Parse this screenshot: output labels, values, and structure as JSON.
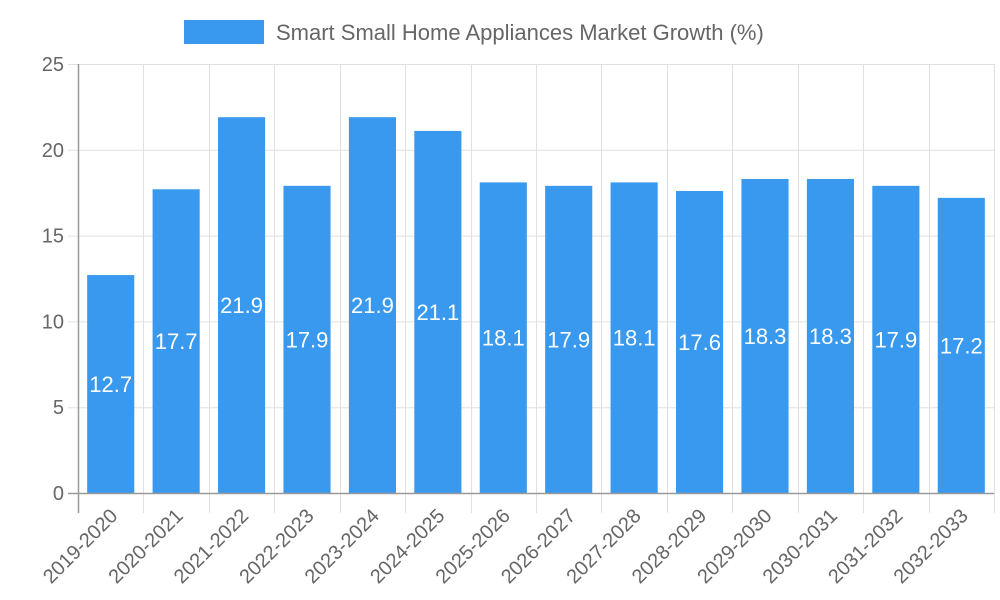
{
  "chart_data": {
    "type": "bar",
    "title": "",
    "legend": {
      "position": "top",
      "entries": [
        {
          "label": "Smart Small Home Appliances Market Growth (%)",
          "color": "#3899EE"
        }
      ]
    },
    "xlabel": "",
    "ylabel": "",
    "ylim": [
      0,
      25
    ],
    "yticks": [
      0,
      5,
      10,
      15,
      20,
      25
    ],
    "grid": true,
    "categories": [
      "2019-2020",
      "2020-2021",
      "2021-2022",
      "2022-2023",
      "2023-2024",
      "2024-2025",
      "2025-2026",
      "2026-2027",
      "2027-2028",
      "2028-2029",
      "2029-2030",
      "2030-2031",
      "2031-2032",
      "2032-2033"
    ],
    "series": [
      {
        "name": "Smart Small Home Appliances Market Growth (%)",
        "color": "#3899EE",
        "values": [
          12.7,
          17.7,
          21.9,
          17.9,
          21.9,
          21.1,
          18.1,
          17.9,
          18.1,
          17.6,
          18.3,
          18.3,
          17.9,
          17.2
        ],
        "data_labels": [
          "12.7",
          "17.7",
          "21.9",
          "17.9",
          "21.9",
          "21.1",
          "18.1",
          "17.9",
          "18.1",
          "17.6",
          "18.3",
          "18.3",
          "17.9",
          "17.2"
        ]
      }
    ],
    "x_tick_rotation_deg": -45
  },
  "colors": {
    "bar": "#3899EE",
    "gridline": "#e0e0e0",
    "axis": "#999999",
    "text": "#666666",
    "data_label": "#ffffff"
  }
}
